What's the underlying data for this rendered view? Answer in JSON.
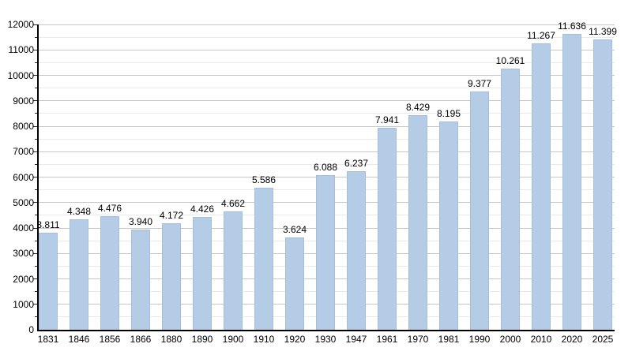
{
  "chart_data": {
    "type": "bar",
    "title": "",
    "xlabel": "",
    "ylabel": "",
    "categories": [
      "1831",
      "1846",
      "1856",
      "1866",
      "1880",
      "1890",
      "1900",
      "1910",
      "1920",
      "1930",
      "1947",
      "1961",
      "1970",
      "1981",
      "1990",
      "2000",
      "2010",
      "2020",
      "2025"
    ],
    "values": [
      3811,
      4348,
      4476,
      3940,
      4172,
      4426,
      4662,
      5586,
      3624,
      6088,
      6237,
      7941,
      8429,
      8195,
      9377,
      10261,
      11267,
      11636,
      11399
    ],
    "value_labels": [
      "3.811",
      "4.348",
      "4.476",
      "3.940",
      "4.172",
      "4.426",
      "4.662",
      "5.586",
      "3.624",
      "6.088",
      "6.237",
      "7.941",
      "8.429",
      "8.195",
      "9.377",
      "10.261",
      "11.267",
      "11.636",
      "11.399"
    ],
    "ylim": [
      0,
      12000
    ],
    "ytick_step": 1000,
    "yminor_step": 500,
    "ytick_labels": [
      "0",
      "1000",
      "2000",
      "3000",
      "4000",
      "5000",
      "6000",
      "7000",
      "8000",
      "9000",
      "10000",
      "11000",
      "12000"
    ],
    "grid": "on",
    "legend_position": "none",
    "colors": {
      "bar_fill": "#b5cce7",
      "bar_edge": "#9fbbd8",
      "major_grid": "#c7c7c7",
      "minor_grid": "#eaeaea",
      "axis": "#000000",
      "text": "#000000",
      "background": "#ffffff"
    }
  }
}
